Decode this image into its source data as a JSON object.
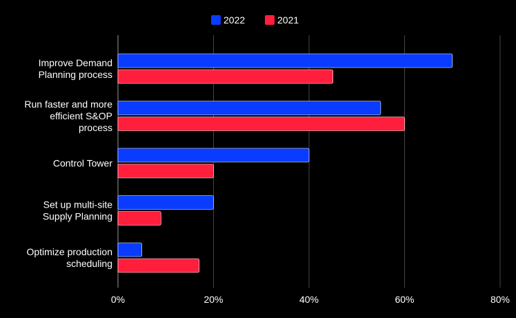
{
  "chart_data": {
    "type": "bar",
    "orientation": "horizontal",
    "categories": [
      [
        "Improve Demand",
        "Planning process"
      ],
      [
        "Run faster and more",
        "efficient S&OP",
        "process"
      ],
      [
        "Control Tower"
      ],
      [
        "Set up multi-site",
        "Supply Planning"
      ],
      [
        "Optimize production",
        "scheduling"
      ]
    ],
    "series": [
      {
        "name": "2022",
        "color": "#0a3cff",
        "values": [
          70,
          55,
          40,
          20,
          5
        ]
      },
      {
        "name": "2021",
        "color": "#ff1f3d",
        "values": [
          45,
          60,
          20,
          9,
          17
        ]
      }
    ],
    "xlim": [
      0,
      80
    ],
    "xticks": [
      0,
      20,
      40,
      60,
      80
    ],
    "tick_format": "{v}%",
    "grid": true,
    "legend_position": "top-center",
    "background": "#000000",
    "text_color": "#ffffff",
    "grid_color": "#444444"
  }
}
